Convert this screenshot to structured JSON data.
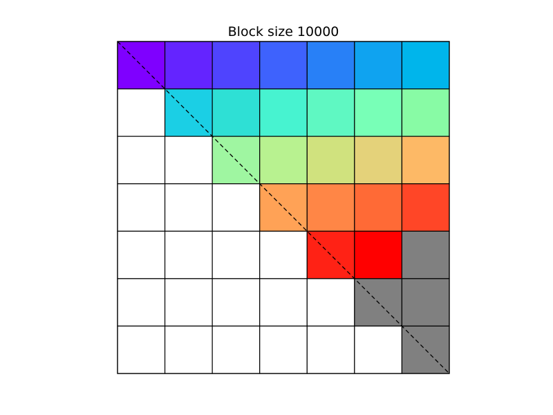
{
  "chart_data": {
    "type": "heatmap",
    "title": "Block size 10000",
    "rows": 7,
    "cols": 7,
    "diagonal_line": {
      "style": "dashed",
      "color": "#000000"
    },
    "grid": true,
    "cells": [
      [
        "#7f00ff",
        "#6424ff",
        "#4f44fe",
        "#3e62fd",
        "#2880f7",
        "#0fa3f0",
        "#00b5eb"
      ],
      [
        "#ffffff",
        "#1bcfe5",
        "#2ee0d5",
        "#47f3d0",
        "#5ff8c2",
        "#78ffb7",
        "#88fba5"
      ],
      [
        "#ffffff",
        "#ffffff",
        "#9ff6a1",
        "#b8f290",
        "#d0e27e",
        "#e4d27a",
        "#fdb966"
      ],
      [
        "#ffffff",
        "#ffffff",
        "#ffffff",
        "#ffa256",
        "#ff8646",
        "#ff6a36",
        "#ff4627"
      ],
      [
        "#ffffff",
        "#ffffff",
        "#ffffff",
        "#ffffff",
        "#ff2215",
        "#ff0000",
        "#808080"
      ],
      [
        "#ffffff",
        "#ffffff",
        "#ffffff",
        "#ffffff",
        "#ffffff",
        "#808080",
        "#808080"
      ],
      [
        "#ffffff",
        "#ffffff",
        "#ffffff",
        "#ffffff",
        "#ffffff",
        "#ffffff",
        "#808080"
      ]
    ]
  }
}
